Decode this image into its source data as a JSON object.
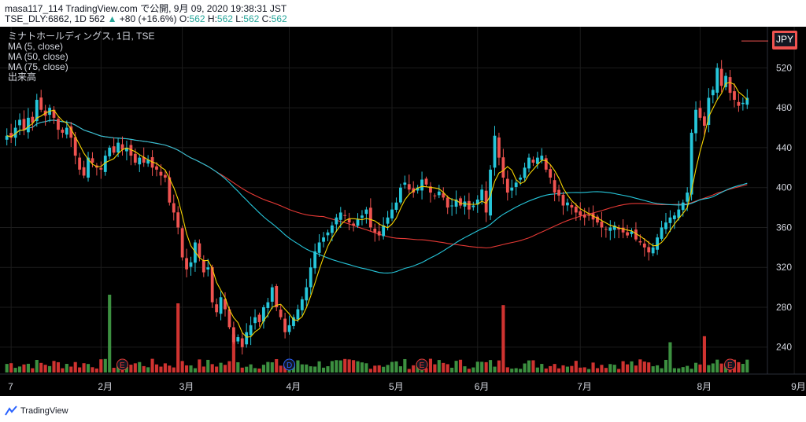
{
  "header": {
    "line1_prefix": "masa117_114 TradingView.com で公開, 9月 09, 2020 19:38:31 JST",
    "symbol": "TSE_DLY:6862, 1D",
    "last": "562",
    "arrow": "▲",
    "change": "+80 (+16.6%)",
    "o_label": "O:",
    "o_value": "562",
    "h_label": "H:",
    "h_value": "562",
    "l_label": "L:",
    "l_value": "562",
    "c_label": "C:",
    "c_value": "562"
  },
  "legend": {
    "title": "ミナトホールディングス, 1日, TSE",
    "ma5": "MA (5, close)",
    "ma50": "MA (50, close)",
    "ma75": "MA (75, close)",
    "volume": "出来高"
  },
  "currency": "JPY",
  "footer": {
    "brand": "TradingView"
  },
  "colors": {
    "up": "#26c6da",
    "down": "#ef5350",
    "vol_up": "#43a047",
    "vol_down": "#e53935",
    "ma5": "#f5d300",
    "ma50": "#26c6da",
    "ma75": "#e53935",
    "grid": "#1c1c1c",
    "text": "#d1d4dc"
  },
  "chart_data": {
    "type": "candlestick",
    "y_ticks": [
      240,
      280,
      320,
      360,
      400,
      440,
      480,
      520
    ],
    "ylim": [
      213,
      555
    ],
    "x_ticks": [
      "7",
      "2月",
      "3月",
      "4月",
      "5月",
      "6月",
      "7月",
      "8月",
      "9月"
    ],
    "x_tick_index": [
      1,
      22,
      41,
      66,
      90,
      110,
      134,
      162,
      184
    ],
    "events": [
      {
        "index": 27,
        "label": "E"
      },
      {
        "index": 66,
        "label": "D"
      },
      {
        "index": 97,
        "label": "E"
      },
      {
        "index": 169,
        "label": "E"
      }
    ],
    "ohlc_close": [
      452,
      450,
      460,
      468,
      458,
      470,
      465,
      488,
      478,
      472,
      480,
      470,
      458,
      455,
      460,
      450,
      432,
      418,
      412,
      430,
      425,
      420,
      418,
      432,
      440,
      435,
      445,
      438,
      440,
      432,
      425,
      430,
      425,
      428,
      420,
      418,
      412,
      410,
      385,
      375,
      360,
      330,
      318,
      325,
      345,
      330,
      315,
      320,
      285,
      275,
      290,
      278,
      260,
      245,
      250,
      240,
      255,
      262,
      270,
      265,
      280,
      285,
      300,
      280,
      270,
      255,
      262,
      270,
      278,
      288,
      300,
      320,
      336,
      345,
      350,
      355,
      362,
      370,
      375,
      372,
      365,
      362,
      368,
      372,
      378,
      360,
      355,
      352,
      362,
      370,
      378,
      385,
      400,
      405,
      398,
      395,
      400,
      408,
      403,
      395,
      392,
      396,
      390,
      380,
      382,
      388,
      382,
      386,
      378,
      382,
      388,
      398,
      375,
      418,
      452,
      430,
      410,
      395,
      400,
      405,
      410,
      420,
      430,
      425,
      430,
      432,
      418,
      410,
      395,
      392,
      382,
      385,
      380,
      375,
      372,
      370,
      372,
      368,
      365,
      360,
      358,
      360,
      362,
      358,
      355,
      352,
      356,
      348,
      345,
      340,
      335,
      340,
      350,
      360,
      365,
      370,
      372,
      378,
      385,
      395,
      455,
      478,
      470,
      462,
      490,
      498,
      520,
      502,
      512,
      495,
      488,
      482,
      485,
      490
    ]
  }
}
